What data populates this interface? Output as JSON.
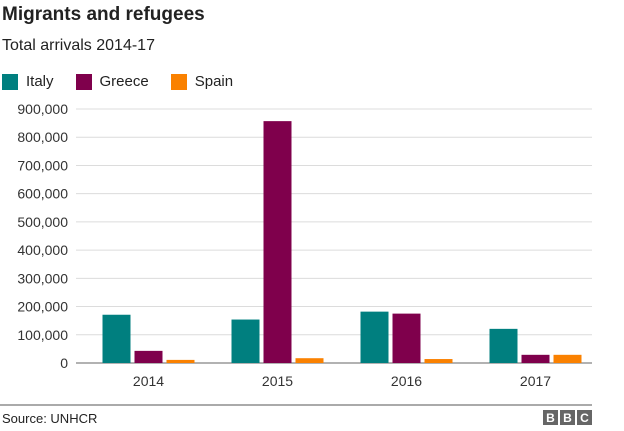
{
  "chart_data": {
    "type": "bar",
    "title": "Migrants and refugees",
    "subtitle": "Total arrivals 2014-17",
    "categories": [
      "2014",
      "2015",
      "2016",
      "2017"
    ],
    "series": [
      {
        "name": "Italy",
        "color": "#007f7f",
        "values": [
          171000,
          154000,
          182000,
          121000
        ]
      },
      {
        "name": "Greece",
        "color": "#7f004c",
        "values": [
          43000,
          857000,
          175000,
          29000
        ]
      },
      {
        "name": "Spain",
        "color": "#fa8100",
        "values": [
          11000,
          17000,
          14000,
          29000
        ]
      }
    ],
    "ylim": [
      0,
      900000
    ],
    "yticks": [
      "0",
      "100,000",
      "200,000",
      "300,000",
      "400,000",
      "500,000",
      "600,000",
      "700,000",
      "800,000",
      "900,000"
    ],
    "grid": true,
    "legend": "top-left",
    "source": "Source: UNHCR",
    "logo": "BBC"
  }
}
